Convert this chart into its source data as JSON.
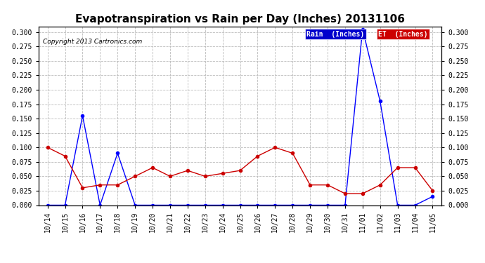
{
  "title": "Evapotranspiration vs Rain per Day (Inches) 20131106",
  "copyright": "Copyright 2013 Cartronics.com",
  "x_labels": [
    "10/14",
    "10/15",
    "10/16",
    "10/17",
    "10/18",
    "10/19",
    "10/20",
    "10/21",
    "10/22",
    "10/23",
    "10/24",
    "10/25",
    "10/26",
    "10/27",
    "10/28",
    "10/29",
    "10/30",
    "10/31",
    "11/01",
    "11/02",
    "11/03",
    "11/04",
    "11/05"
  ],
  "rain_values": [
    0.0,
    0.0,
    0.155,
    0.0,
    0.09,
    0.0,
    0.0,
    0.0,
    0.0,
    0.0,
    0.0,
    0.0,
    0.0,
    0.0,
    0.0,
    0.0,
    0.0,
    0.0,
    0.305,
    0.18,
    0.0,
    0.0,
    0.015
  ],
  "et_values": [
    0.1,
    0.085,
    0.03,
    0.035,
    0.035,
    0.05,
    0.065,
    0.05,
    0.06,
    0.05,
    0.055,
    0.06,
    0.085,
    0.1,
    0.09,
    0.035,
    0.035,
    0.02,
    0.02,
    0.035,
    0.065,
    0.065,
    0.025
  ],
  "rain_color": "#0000ff",
  "et_color": "#cc0000",
  "ylim": [
    0,
    0.31
  ],
  "yticks": [
    0.0,
    0.025,
    0.05,
    0.075,
    0.1,
    0.125,
    0.15,
    0.175,
    0.2,
    0.225,
    0.25,
    0.275,
    0.3
  ],
  "background_color": "#ffffff",
  "grid_color": "#bbbbbb",
  "title_fontsize": 11,
  "copyright_fontsize": 6.5,
  "tick_fontsize": 7,
  "marker_size": 3,
  "legend_rain_bg": "#0000cc",
  "legend_et_bg": "#cc0000",
  "legend_fontsize": 7
}
